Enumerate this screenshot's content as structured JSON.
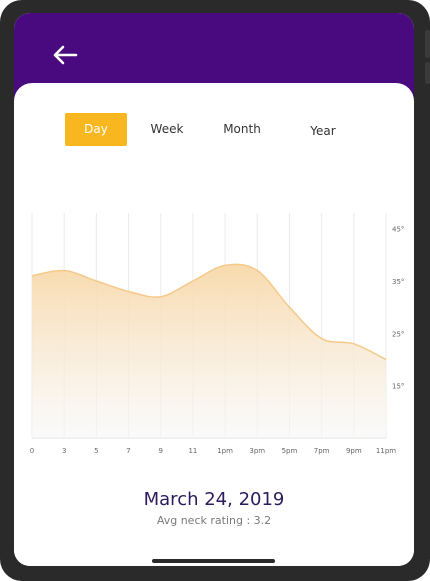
{
  "header": {
    "back_icon": "arrow-left-icon",
    "color": "#4a0a7f"
  },
  "tabs": [
    {
      "label": "Day",
      "active": true
    },
    {
      "label": "Week",
      "active": false
    },
    {
      "label": "Month",
      "active": false
    },
    {
      "label": "Year",
      "active": false
    }
  ],
  "summary": {
    "date": "March 24, 2019",
    "avg_label": "Avg neck rating : 3.2"
  },
  "colors": {
    "accent": "#f8b71e",
    "curve": "#f5c98a",
    "fill_top": "#f8dcb1",
    "title": "#2d1b5c"
  },
  "chart_data": {
    "type": "area",
    "x": [
      "0",
      "3",
      "5",
      "7",
      "9",
      "11",
      "1pm",
      "3pm",
      "5pm",
      "7pm",
      "9pm",
      "11pm"
    ],
    "values": [
      36,
      37,
      35,
      33,
      32,
      35,
      38,
      37,
      30,
      24,
      23,
      20
    ],
    "y_ticks": [
      "45°",
      "35°",
      "25°",
      "15°"
    ],
    "y_tick_values": [
      45,
      35,
      25,
      15
    ],
    "ylim": [
      5,
      48
    ],
    "grid": true,
    "x_tick_labels": [
      "0",
      "3",
      "5",
      "7",
      "9",
      "11",
      "1pm",
      "3pm",
      "5pm",
      "7pm",
      "9pm",
      "11pm"
    ]
  }
}
